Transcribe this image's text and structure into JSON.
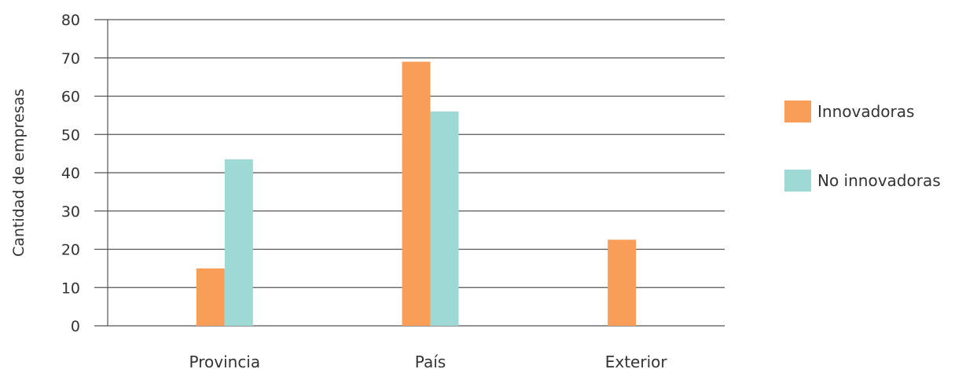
{
  "chart_data": {
    "type": "bar",
    "categories": [
      "Provincia",
      "País",
      "Exterior"
    ],
    "series": [
      {
        "name": "Innovadoras",
        "values": [
          15,
          69,
          22.5
        ],
        "color": "#F89E58"
      },
      {
        "name": "No innovadoras",
        "values": [
          43.5,
          56,
          0
        ],
        "color": "#9ED9D6"
      }
    ],
    "title": "",
    "xlabel": "",
    "ylabel": "Cantidad de empresas",
    "ylim": [
      0,
      80
    ],
    "yticks": [
      "0",
      "10",
      "20",
      "30",
      "40",
      "50",
      "60",
      "70",
      "80"
    ],
    "grid": true,
    "legend_position": "right"
  }
}
